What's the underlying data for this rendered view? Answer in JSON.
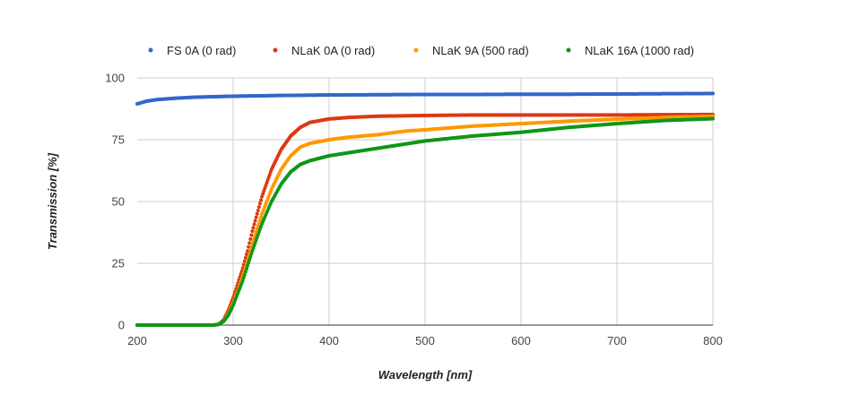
{
  "chart_data": {
    "type": "scatter",
    "title": "",
    "xlabel": "Wavelength [nm]",
    "ylabel": "Transmission [%]",
    "xlim": [
      200,
      800
    ],
    "ylim": [
      0,
      100
    ],
    "x_ticks": [
      "200",
      "300",
      "400",
      "500",
      "600",
      "700",
      "800"
    ],
    "y_ticks": [
      "0",
      "25",
      "50",
      "75",
      "100"
    ],
    "x_tick_values": [
      200,
      300,
      400,
      500,
      600,
      700,
      800
    ],
    "y_tick_values": [
      0,
      25,
      50,
      75,
      100
    ],
    "grid": true,
    "legend_position": "top",
    "series": [
      {
        "name": "FS 0A (0 rad)",
        "color": "#3366cc",
        "points": [
          [
            200,
            89.5
          ],
          [
            210,
            90.6
          ],
          [
            220,
            91.2
          ],
          [
            240,
            91.8
          ],
          [
            260,
            92.2
          ],
          [
            280,
            92.4
          ],
          [
            300,
            92.6
          ],
          [
            350,
            92.9
          ],
          [
            400,
            93.1
          ],
          [
            450,
            93.2
          ],
          [
            500,
            93.3
          ],
          [
            550,
            93.3
          ],
          [
            600,
            93.4
          ],
          [
            650,
            93.4
          ],
          [
            700,
            93.5
          ],
          [
            750,
            93.6
          ],
          [
            800,
            93.7
          ]
        ]
      },
      {
        "name": "NLaK 0A (0 rad)",
        "color": "#dc3912",
        "points": [
          [
            200,
            0
          ],
          [
            280,
            0
          ],
          [
            285,
            0.3
          ],
          [
            290,
            2
          ],
          [
            295,
            6
          ],
          [
            300,
            11
          ],
          [
            305,
            17
          ],
          [
            310,
            23
          ],
          [
            315,
            30
          ],
          [
            320,
            38
          ],
          [
            330,
            52
          ],
          [
            340,
            63
          ],
          [
            350,
            71
          ],
          [
            360,
            76.5
          ],
          [
            370,
            80
          ],
          [
            380,
            82
          ],
          [
            400,
            83.4
          ],
          [
            420,
            84
          ],
          [
            450,
            84.5
          ],
          [
            500,
            84.8
          ],
          [
            550,
            85
          ],
          [
            600,
            85
          ],
          [
            700,
            85
          ],
          [
            800,
            85.2
          ]
        ]
      },
      {
        "name": "NLaK 9A (500 rad)",
        "color": "#ff9900",
        "points": [
          [
            200,
            0
          ],
          [
            280,
            0
          ],
          [
            285,
            0.3
          ],
          [
            290,
            1.5
          ],
          [
            295,
            4.5
          ],
          [
            300,
            9
          ],
          [
            305,
            14
          ],
          [
            310,
            20
          ],
          [
            315,
            26
          ],
          [
            320,
            33
          ],
          [
            330,
            45
          ],
          [
            340,
            55
          ],
          [
            350,
            63
          ],
          [
            360,
            68.5
          ],
          [
            370,
            72
          ],
          [
            380,
            73.5
          ],
          [
            400,
            75
          ],
          [
            420,
            76
          ],
          [
            450,
            77
          ],
          [
            480,
            78.5
          ],
          [
            500,
            79
          ],
          [
            550,
            80.5
          ],
          [
            600,
            81.5
          ],
          [
            650,
            82.5
          ],
          [
            700,
            83.3
          ],
          [
            750,
            84
          ],
          [
            800,
            84.5
          ]
        ]
      },
      {
        "name": "NLaK 16A (1000 rad)",
        "color": "#109618",
        "points": [
          [
            200,
            0
          ],
          [
            280,
            0
          ],
          [
            285,
            0.3
          ],
          [
            290,
            1.5
          ],
          [
            295,
            4
          ],
          [
            300,
            8
          ],
          [
            305,
            13
          ],
          [
            310,
            18
          ],
          [
            315,
            24
          ],
          [
            320,
            30
          ],
          [
            330,
            41
          ],
          [
            340,
            50
          ],
          [
            350,
            57
          ],
          [
            360,
            62
          ],
          [
            370,
            65
          ],
          [
            380,
            66.5
          ],
          [
            400,
            68.5
          ],
          [
            450,
            71.5
          ],
          [
            500,
            74.5
          ],
          [
            550,
            76.5
          ],
          [
            600,
            78
          ],
          [
            650,
            80
          ],
          [
            700,
            81.5
          ],
          [
            750,
            82.8
          ],
          [
            800,
            83.5
          ]
        ]
      }
    ]
  }
}
